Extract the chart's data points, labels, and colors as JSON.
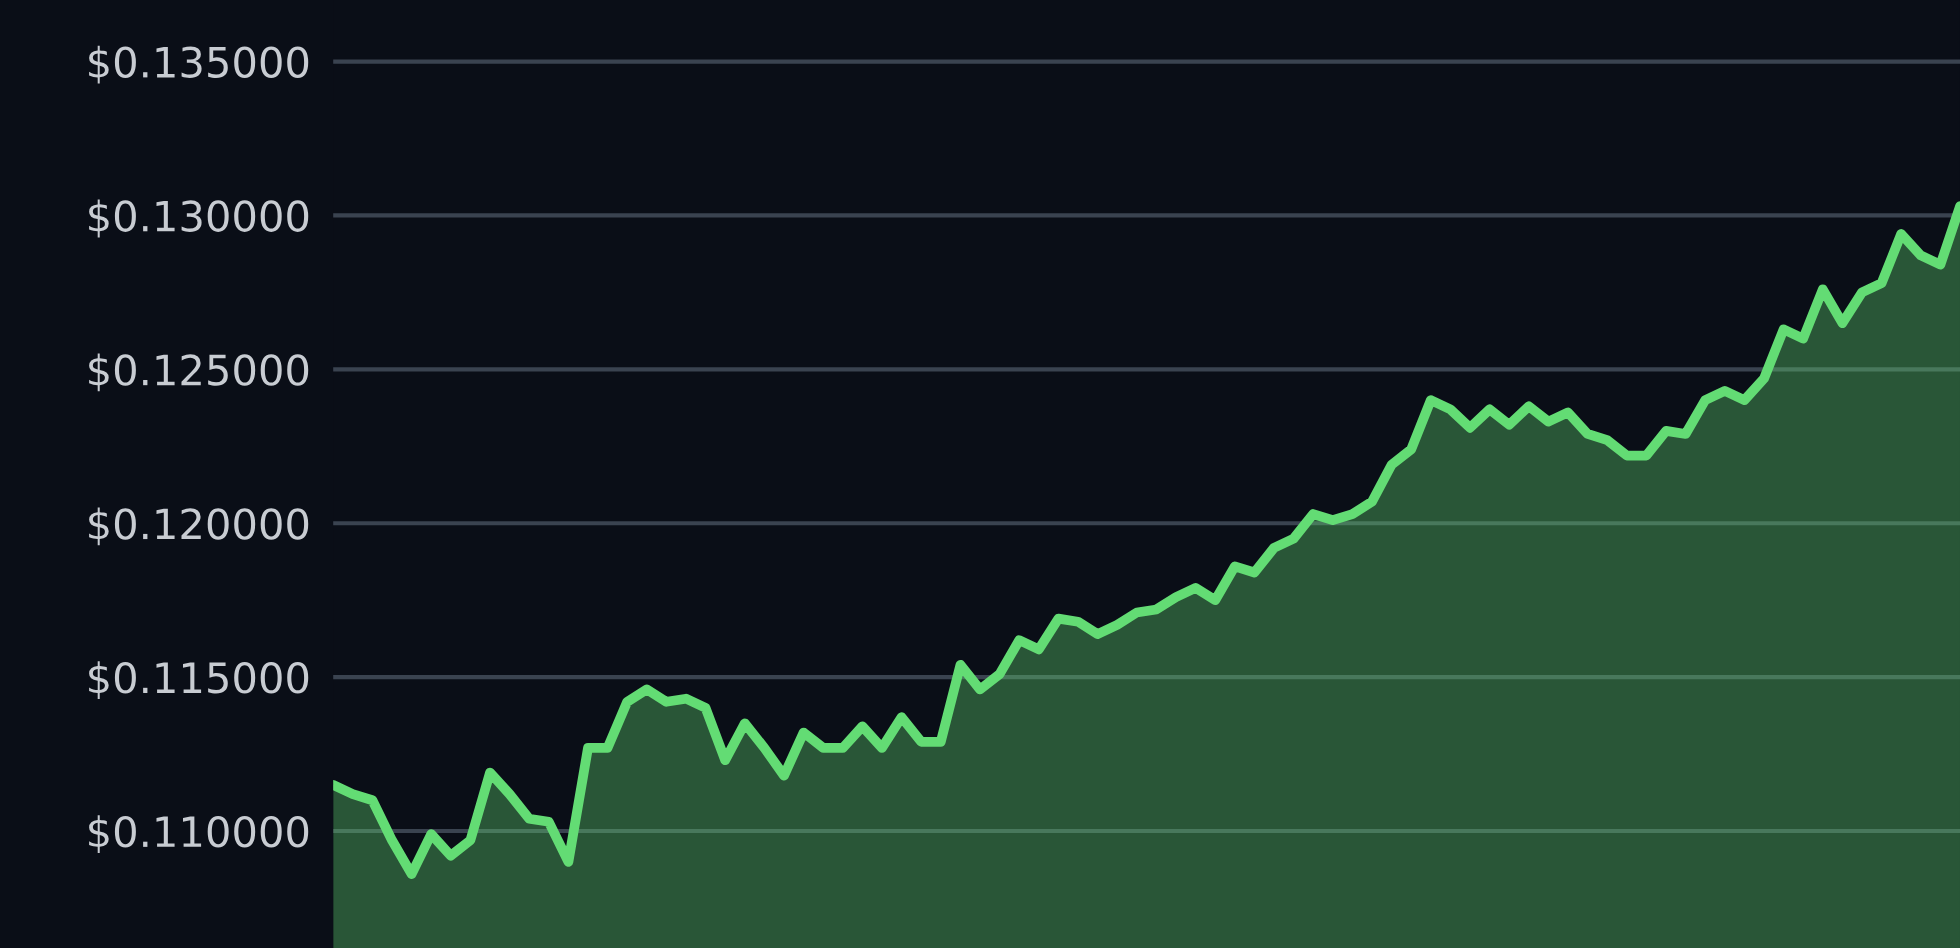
{
  "chart_data": {
    "type": "area",
    "categories": [
      null,
      null,
      null,
      null,
      null,
      null,
      null,
      null,
      null,
      null,
      null,
      null,
      null,
      null,
      null,
      null,
      null,
      null,
      null,
      null,
      null,
      null,
      null,
      null,
      null,
      null,
      null,
      null,
      null,
      null,
      null,
      null,
      null,
      null,
      null,
      null,
      null,
      null,
      null,
      null,
      null,
      null,
      null,
      null,
      null,
      null,
      null,
      null,
      null,
      null,
      null,
      null,
      null,
      null,
      null,
      null,
      null,
      null,
      null,
      null,
      null,
      null,
      null,
      null,
      null,
      null,
      null,
      null,
      null,
      null,
      null,
      null,
      null,
      null,
      null,
      null,
      null,
      null,
      null,
      null,
      null,
      null,
      null,
      null
    ],
    "series": [
      {
        "color": "#63dc74",
        "values": [
          0.1115,
          0.1112,
          0.111,
          0.1097,
          0.1086,
          0.1099,
          0.1092,
          0.1097,
          0.1119,
          0.1112,
          0.1104,
          0.1103,
          0.109,
          0.1127,
          0.1127,
          0.1142,
          0.1146,
          0.1142,
          0.1143,
          0.114,
          0.1123,
          0.1135,
          0.1127,
          0.1118,
          0.1132,
          0.1127,
          0.1127,
          0.1134,
          0.1127,
          0.1137,
          0.1129,
          0.1129,
          0.1154,
          0.1146,
          0.1151,
          0.1162,
          0.1159,
          0.1169,
          0.1168,
          0.1164,
          0.1167,
          0.1171,
          0.1172,
          0.1176,
          0.1179,
          0.1175,
          0.1186,
          0.1184,
          0.1192,
          0.1195,
          0.1203,
          0.1201,
          0.1203,
          0.1207,
          0.1219,
          0.1224,
          0.124,
          0.1237,
          0.1231,
          0.1237,
          0.1232,
          0.1238,
          0.1233,
          0.1236,
          0.1229,
          0.1227,
          0.1222,
          0.1222,
          0.123,
          0.1229,
          0.124,
          0.1243,
          0.124,
          0.1247,
          0.1263,
          0.126,
          0.1276,
          0.1265,
          0.1275,
          0.1278,
          0.1294,
          0.1287,
          0.1284,
          0.1303
        ]
      }
    ],
    "ylim": [
      0.1062,
      0.137
    ],
    "yticks": [
      {
        "value": 0.11,
        "label": "$0.110000"
      },
      {
        "value": 0.115,
        "label": "$0.115000"
      },
      {
        "value": 0.12,
        "label": "$0.120000"
      },
      {
        "value": 0.125,
        "label": "$0.125000"
      },
      {
        "value": 0.13,
        "label": "$0.130000"
      },
      {
        "value": 0.135,
        "label": "$0.135000"
      }
    ],
    "grid": "y",
    "tick_labels": "y"
  }
}
